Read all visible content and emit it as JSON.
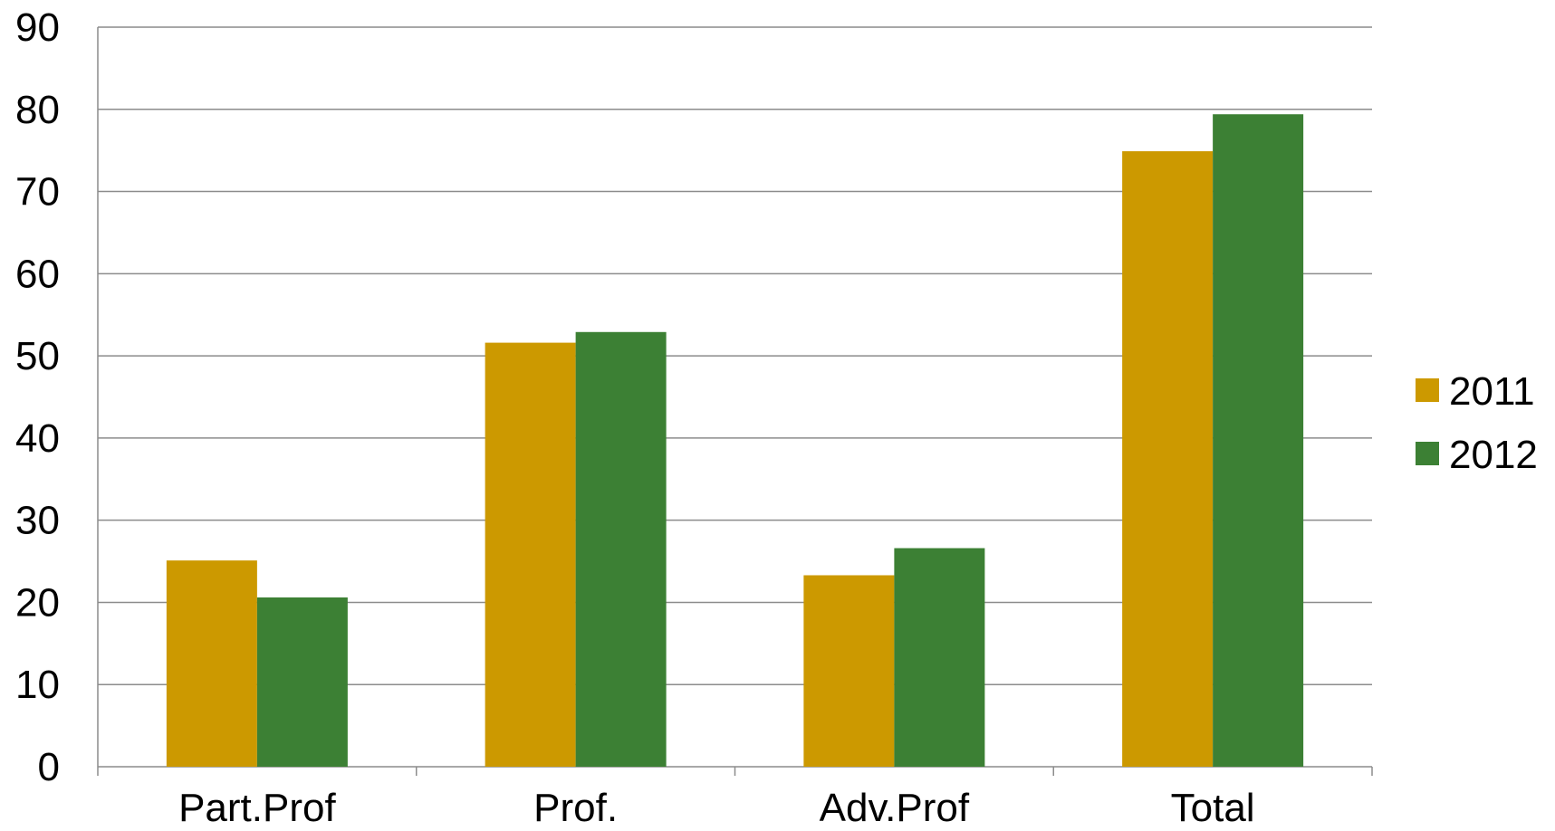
{
  "chart_data": {
    "type": "bar",
    "title": "",
    "xlabel": "",
    "ylabel": "",
    "categories": [
      "Part.Prof",
      "Prof.",
      "Adv.Prof",
      "Total"
    ],
    "series": [
      {
        "name": "2011",
        "color": "#CC9900",
        "values": [
          25.1,
          51.6,
          23.3,
          74.9
        ]
      },
      {
        "name": "2012",
        "color": "#3C8034",
        "values": [
          20.6,
          52.9,
          26.6,
          79.4
        ]
      }
    ],
    "ylim": [
      0,
      90
    ],
    "yticks": [
      0,
      10,
      20,
      30,
      40,
      50,
      60,
      70,
      80,
      90
    ],
    "grid": true,
    "legend_position": "right"
  }
}
